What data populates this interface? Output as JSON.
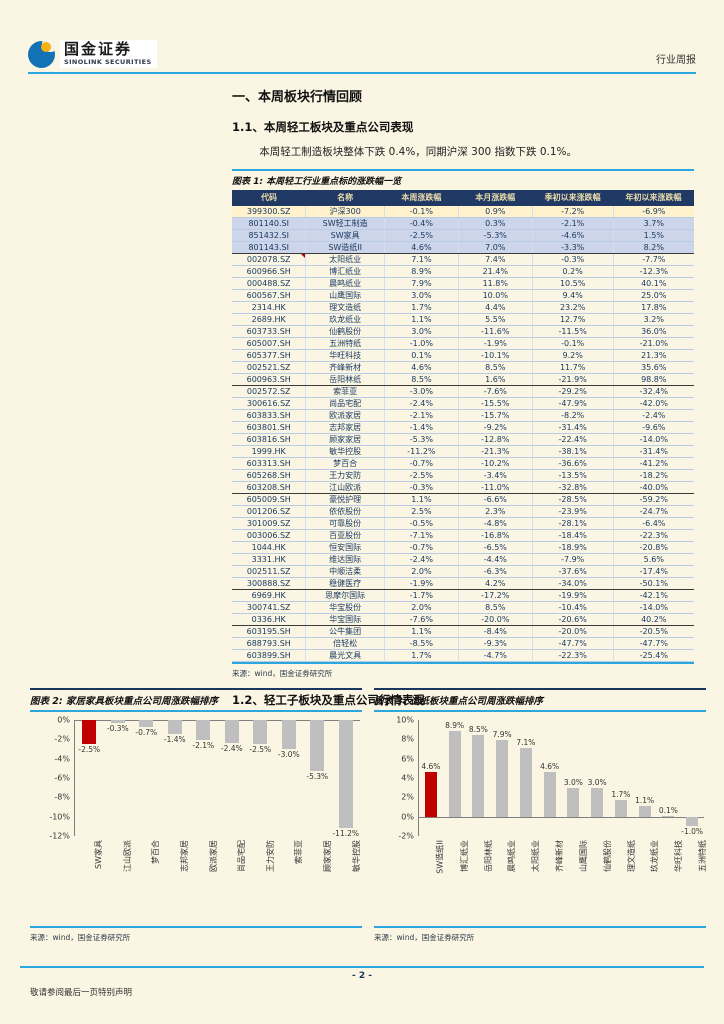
{
  "header": {
    "brand_cn": "国金证券",
    "brand_en": "SINOLINK SECURITIES",
    "doc_type": "行业周报"
  },
  "sections": {
    "s1_title": "一、本周板块行情回顾",
    "s11_title": "1.1、本周轻工板块及重点公司表现",
    "s11_para": "本周轻工制造板块整体下跌 0.4%，同期沪深 300 指数下跌 0.1%。",
    "s12_title": "1.2、轻工子板块及重点公司行情表现"
  },
  "colors": {
    "accent_cyan": "#2CA6DE",
    "table_header_bg": "#1F3864",
    "table_header_text": "#EBDCAC",
    "row_csi_bg": "#FFF2CC",
    "row_sw_bg": "#CDD5EA",
    "table_text": "#17375E",
    "bar_gray": "#BFBFBF",
    "bar_red": "#C00000"
  },
  "figure1": {
    "title": "图表 1: 本周轻工行业重点标的涨跌幅一览",
    "source": "来源：wind，国金证券研究所",
    "columns": [
      "代码",
      "名称",
      "本周涨跌幅",
      "本月涨跌幅",
      "季初以来涨跌幅",
      "年初以来涨跌幅"
    ],
    "rows": [
      {
        "code": "399300.SZ",
        "name": "沪深300",
        "week": "-0.1%",
        "month": "0.9%",
        "quarter": "-7.2%",
        "year": "-6.9%",
        "style": "csi"
      },
      {
        "code": "801140.SI",
        "name": "SW轻工制造",
        "week": "-0.4%",
        "month": "0.3%",
        "quarter": "-2.1%",
        "year": "3.7%",
        "style": "sw"
      },
      {
        "code": "851432.SI",
        "name": "SW家具",
        "week": "-2.5%",
        "month": "-5.3%",
        "quarter": "-4.6%",
        "year": "1.5%",
        "style": "sw"
      },
      {
        "code": "801143.SI",
        "name": "SW造纸II",
        "week": "4.6%",
        "month": "7.0%",
        "quarter": "-3.3%",
        "year": "8.2%",
        "style": "sw",
        "group_end": true
      },
      {
        "code": "002078.SZ",
        "name": "太阳纸业",
        "week": "7.1%",
        "month": "7.4%",
        "quarter": "-0.3%",
        "year": "-7.7%",
        "marker": true
      },
      {
        "code": "600966.SH",
        "name": "博汇纸业",
        "week": "8.9%",
        "month": "21.4%",
        "quarter": "0.2%",
        "year": "-12.3%"
      },
      {
        "code": "000488.SZ",
        "name": "晨鸣纸业",
        "week": "7.9%",
        "month": "11.8%",
        "quarter": "10.5%",
        "year": "40.1%"
      },
      {
        "code": "600567.SH",
        "name": "山鹰国际",
        "week": "3.0%",
        "month": "10.0%",
        "quarter": "9.4%",
        "year": "25.0%"
      },
      {
        "code": "2314.HK",
        "name": "理文造纸",
        "week": "1.7%",
        "month": "4.4%",
        "quarter": "23.2%",
        "year": "17.8%"
      },
      {
        "code": "2689.HK",
        "name": "玖龙纸业",
        "week": "1.1%",
        "month": "5.5%",
        "quarter": "12.7%",
        "year": "3.2%"
      },
      {
        "code": "603733.SH",
        "name": "仙鹤股份",
        "week": "3.0%",
        "month": "-11.6%",
        "quarter": "-11.5%",
        "year": "36.0%"
      },
      {
        "code": "605007.SH",
        "name": "五洲特纸",
        "week": "-1.0%",
        "month": "-1.9%",
        "quarter": "-0.1%",
        "year": "-21.0%"
      },
      {
        "code": "605377.SH",
        "name": "华旺科技",
        "week": "0.1%",
        "month": "-10.1%",
        "quarter": "9.2%",
        "year": "21.3%"
      },
      {
        "code": "002521.SZ",
        "name": "齐峰新材",
        "week": "4.6%",
        "month": "8.5%",
        "quarter": "11.7%",
        "year": "35.6%"
      },
      {
        "code": "600963.SH",
        "name": "岳阳林纸",
        "week": "8.5%",
        "month": "1.6%",
        "quarter": "-21.9%",
        "year": "98.8%",
        "group_end": true
      },
      {
        "code": "002572.SZ",
        "name": "索菲亚",
        "week": "-3.0%",
        "month": "-7.6%",
        "quarter": "-29.2%",
        "year": "-32.4%"
      },
      {
        "code": "300616.SZ",
        "name": "尚品宅配",
        "week": "-2.4%",
        "month": "-15.5%",
        "quarter": "-47.9%",
        "year": "-42.0%"
      },
      {
        "code": "603833.SH",
        "name": "欧派家居",
        "week": "-2.1%",
        "month": "-15.7%",
        "quarter": "-8.2%",
        "year": "-2.4%"
      },
      {
        "code": "603801.SH",
        "name": "志邦家居",
        "week": "-1.4%",
        "month": "-9.2%",
        "quarter": "-31.4%",
        "year": "-9.6%"
      },
      {
        "code": "603816.SH",
        "name": "顾家家居",
        "week": "-5.3%",
        "month": "-12.8%",
        "quarter": "-22.4%",
        "year": "-14.0%"
      },
      {
        "code": "1999.HK",
        "name": "敏华控股",
        "week": "-11.2%",
        "month": "-21.3%",
        "quarter": "-38.1%",
        "year": "-31.4%"
      },
      {
        "code": "603313.SH",
        "name": "梦百合",
        "week": "-0.7%",
        "month": "-10.2%",
        "quarter": "-36.6%",
        "year": "-41.2%"
      },
      {
        "code": "605268.SH",
        "name": "王力安防",
        "week": "-2.5%",
        "month": "-3.4%",
        "quarter": "-13.5%",
        "year": "-18.2%"
      },
      {
        "code": "603208.SH",
        "name": "江山欧派",
        "week": "-0.3%",
        "month": "-11.0%",
        "quarter": "-32.8%",
        "year": "-40.0%",
        "group_end": true
      },
      {
        "code": "605009.SH",
        "name": "豪悦护理",
        "week": "1.1%",
        "month": "-6.6%",
        "quarter": "-28.5%",
        "year": "-59.2%"
      },
      {
        "code": "001206.SZ",
        "name": "依依股份",
        "week": "2.5%",
        "month": "2.3%",
        "quarter": "-23.9%",
        "year": "-24.7%"
      },
      {
        "code": "301009.SZ",
        "name": "可靠股份",
        "week": "-0.5%",
        "month": "-4.8%",
        "quarter": "-28.1%",
        "year": "-6.4%"
      },
      {
        "code": "003006.SZ",
        "name": "百亚股份",
        "week": "-7.1%",
        "month": "-16.8%",
        "quarter": "-18.4%",
        "year": "-22.3%"
      },
      {
        "code": "1044.HK",
        "name": "恒安国际",
        "week": "-0.7%",
        "month": "-6.5%",
        "quarter": "-18.9%",
        "year": "-20.8%"
      },
      {
        "code": "3331.HK",
        "name": "维达国际",
        "week": "-2.4%",
        "month": "-4.4%",
        "quarter": "-7.9%",
        "year": "5.6%"
      },
      {
        "code": "002511.SZ",
        "name": "中顺洁柔",
        "week": "2.0%",
        "month": "-6.3%",
        "quarter": "-37.6%",
        "year": "-17.4%"
      },
      {
        "code": "300888.SZ",
        "name": "稳健医疗",
        "week": "-1.9%",
        "month": "4.2%",
        "quarter": "-34.0%",
        "year": "-50.1%",
        "group_end": true
      },
      {
        "code": "6969.HK",
        "name": "思摩尔国际",
        "week": "-1.7%",
        "month": "-17.2%",
        "quarter": "-19.9%",
        "year": "-42.1%"
      },
      {
        "code": "300741.SZ",
        "name": "华宝股份",
        "week": "2.0%",
        "month": "8.5%",
        "quarter": "-10.4%",
        "year": "-14.0%"
      },
      {
        "code": "0336.HK",
        "name": "华宝国际",
        "week": "-7.6%",
        "month": "-20.0%",
        "quarter": "-20.6%",
        "year": "40.2%",
        "group_end": true
      },
      {
        "code": "603195.SH",
        "name": "公牛集团",
        "week": "1.1%",
        "month": "-8.4%",
        "quarter": "-20.0%",
        "year": "-20.5%"
      },
      {
        "code": "688793.SH",
        "name": "倍轻松",
        "week": "-8.5%",
        "month": "-9.3%",
        "quarter": "-47.7%",
        "year": "-47.7%"
      },
      {
        "code": "603899.SH",
        "name": "晨光文具",
        "week": "1.7%",
        "month": "-4.7%",
        "quarter": "-22.3%",
        "year": "-25.4%"
      }
    ]
  },
  "chart_data": [
    {
      "type": "bar",
      "title": "图表 2: 家居家具板块重点公司周涨跌幅排序",
      "source": "来源：wind，国金证券研究所",
      "categories": [
        "SW家具",
        "江山欧派",
        "梦百合",
        "志邦家居",
        "欧派家居",
        "尚品宅配",
        "王力安防",
        "索菲亚",
        "顾家家居",
        "敏华控股"
      ],
      "values": [
        -2.5,
        -0.3,
        -0.7,
        -1.4,
        -2.1,
        -2.4,
        -2.5,
        -3.0,
        -5.3,
        -11.2
      ],
      "labels": [
        "-2.5%",
        "-0.3%",
        "-0.7%",
        "-1.4%",
        "-2.1%",
        "-2.4%",
        "-2.5%",
        "-3.0%",
        "-5.3%",
        "-11.2%"
      ],
      "highlight_index": 0,
      "bar_color": "#BFBFBF",
      "highlight_color": "#C00000",
      "ylim": [
        -12,
        0
      ],
      "ytick_labels": [
        "0%",
        "-2%",
        "-4%",
        "-6%",
        "-8%",
        "-10%",
        "-12%"
      ],
      "xlabel": "",
      "ylabel": "",
      "grid": false,
      "legend": "none"
    },
    {
      "type": "bar",
      "title": "图表 3: 造纸板块重点公司周涨跌幅排序",
      "source": "来源：wind，国金证券研究所",
      "categories": [
        "SW造纸II",
        "博汇纸业",
        "岳阳林纸",
        "晨鸣纸业",
        "太阳纸业",
        "齐峰新材",
        "山鹰国际",
        "仙鹤股份",
        "理文造纸",
        "玖龙纸业",
        "华旺科技",
        "五洲特纸"
      ],
      "values": [
        4.6,
        8.9,
        8.5,
        7.9,
        7.1,
        4.6,
        3.0,
        3.0,
        1.7,
        1.1,
        0.1,
        -1.0
      ],
      "labels": [
        "4.6%",
        "8.9%",
        "8.5%",
        "7.9%",
        "7.1%",
        "4.6%",
        "3.0%",
        "3.0%",
        "1.7%",
        "1.1%",
        "0.1%",
        "-1.0%"
      ],
      "highlight_index": 0,
      "bar_color": "#BFBFBF",
      "highlight_color": "#C00000",
      "ylim": [
        -2,
        10
      ],
      "ytick_labels": [
        "10%",
        "8%",
        "6%",
        "4%",
        "2%",
        "0%",
        "-2%"
      ],
      "xlabel": "",
      "ylabel": "",
      "grid": false,
      "legend": "none"
    }
  ],
  "footer": {
    "page_number": "- 2 -",
    "disclaimer": "敬请参阅最后一页特别声明"
  }
}
